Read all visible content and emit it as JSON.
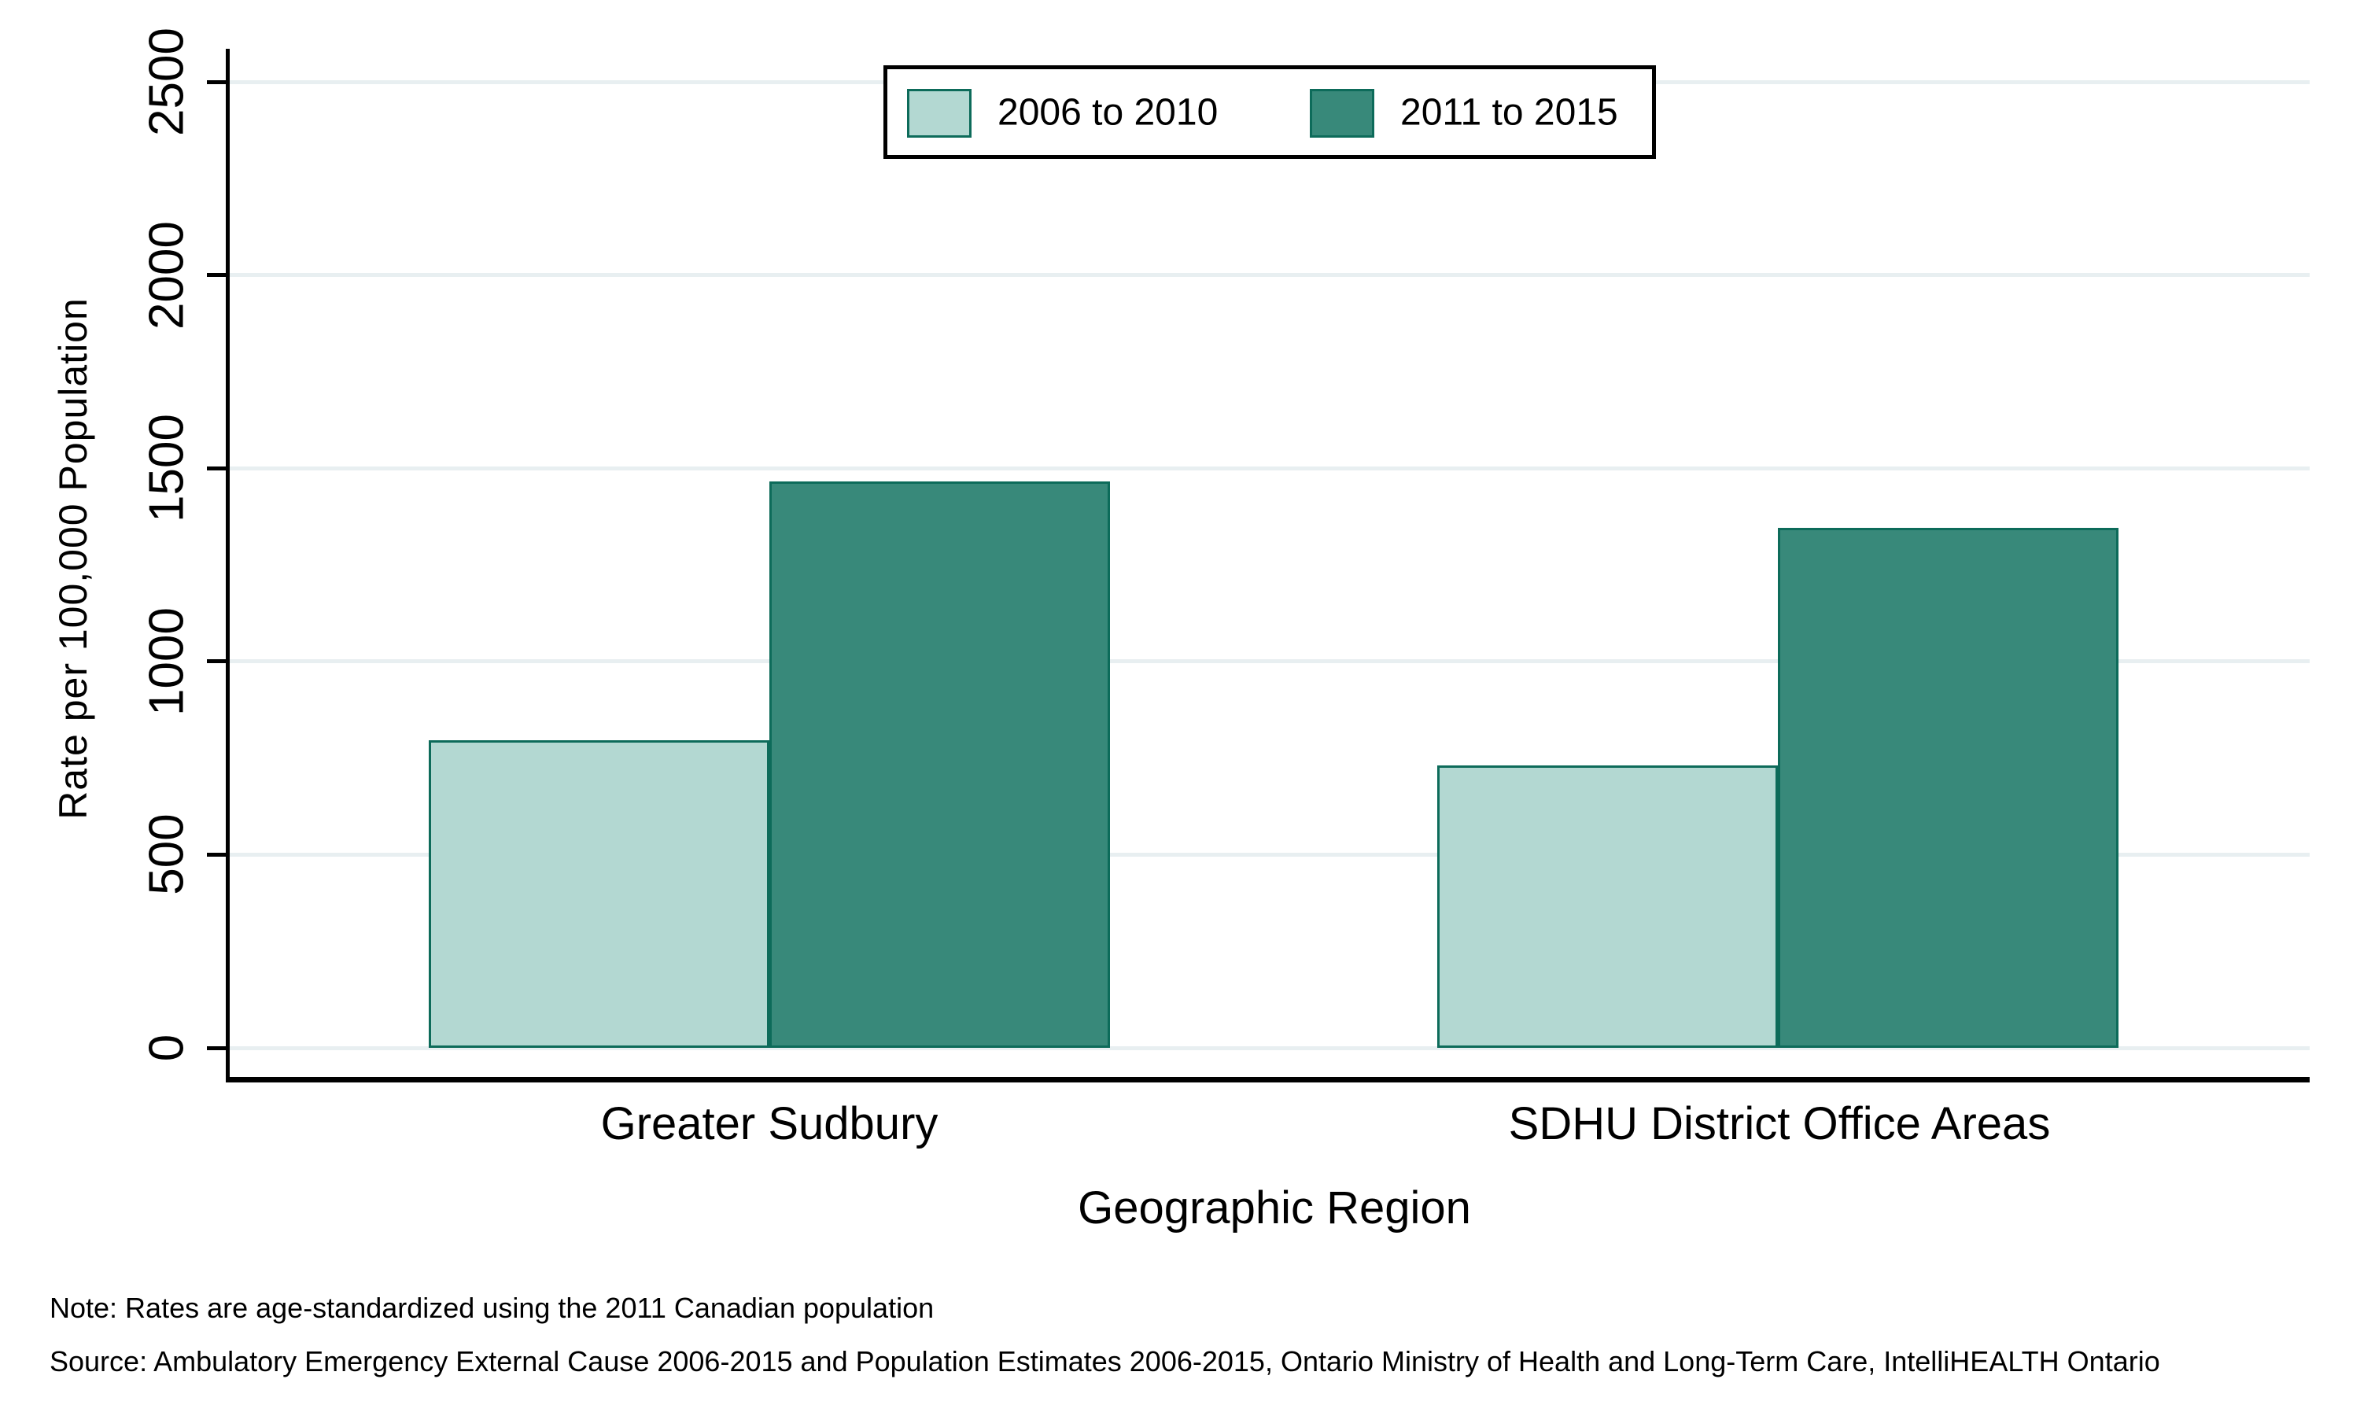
{
  "chart_data": {
    "type": "bar",
    "title": "",
    "categories": [
      "Greater Sudbury",
      "SDHU District Office Areas"
    ],
    "series": [
      {
        "name": "2006 to 2010",
        "color": "#b3d8d2",
        "values": [
          795,
          730
        ]
      },
      {
        "name": "2011 to 2015",
        "color": "#38897a",
        "values": [
          1465,
          1345
        ]
      }
    ],
    "xlabel": "Geographic Region",
    "ylabel": "Rate per 100,000 Population",
    "ylim": [
      0,
      2500
    ],
    "yticks": [
      0,
      500,
      1000,
      1500,
      2000,
      2500
    ],
    "grid": true,
    "legend_position": "top-center",
    "bar_border_color": "#0d6b5a",
    "grid_color": "#e8eff1",
    "axis_color": "#000000",
    "background_color": "#ffffff"
  },
  "notes": {
    "note": "Note: Rates are age-standardized using the 2011 Canadian population",
    "source": "Source: Ambulatory Emergency External Cause 2006-2015 and Population Estimates 2006-2015, Ontario Ministry of Health and Long-Term Care, IntelliHEALTH Ontario"
  }
}
